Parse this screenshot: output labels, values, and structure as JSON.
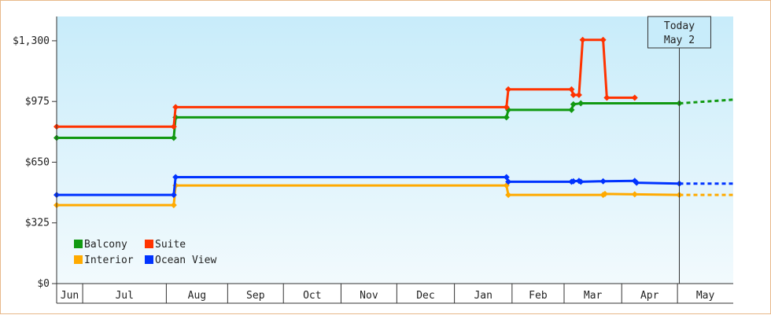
{
  "chart_data": {
    "type": "line",
    "title": "",
    "xlabel": "",
    "ylabel": "",
    "ylim": [
      0,
      1430
    ],
    "yticks": [
      {
        "value": 0,
        "label": "$0"
      },
      {
        "value": 325,
        "label": "$325"
      },
      {
        "value": 650,
        "label": "$650"
      },
      {
        "value": 975,
        "label": "$975"
      },
      {
        "value": 1300,
        "label": "$1,300"
      }
    ],
    "x_axis_type": "date",
    "xlim": [
      "2024-06-01",
      "2025-05-31"
    ],
    "months": [
      {
        "label": "Jun",
        "start": "2024-06-01"
      },
      {
        "label": "Jul",
        "start": "2024-06-15"
      },
      {
        "label": "Aug",
        "start": "2024-07-30"
      },
      {
        "label": "Sep",
        "start": "2024-09-01"
      },
      {
        "label": "Oct",
        "start": "2024-10-01"
      },
      {
        "label": "Nov",
        "start": "2024-11-01"
      },
      {
        "label": "Dec",
        "start": "2024-12-01"
      },
      {
        "label": "Jan",
        "start": "2025-01-01"
      },
      {
        "label": "Feb",
        "start": "2025-02-01"
      },
      {
        "label": "Mar",
        "start": "2025-03-01"
      },
      {
        "label": "Apr",
        "start": "2025-04-01"
      },
      {
        "label": "May",
        "start": "2025-05-01"
      }
    ],
    "today": {
      "label_line1": "Today",
      "label_line2": "May 2",
      "date": "2025-05-02"
    },
    "grid": false,
    "legend_position": "bottom-left",
    "series": [
      {
        "name": "Balcony",
        "color": "#119911",
        "points": [
          {
            "x": "2024-06-01",
            "y": 780
          },
          {
            "x": "2024-08-03",
            "y": 780
          },
          {
            "x": "2024-08-04",
            "y": 890
          },
          {
            "x": "2025-01-29",
            "y": 890
          },
          {
            "x": "2025-01-30",
            "y": 930
          },
          {
            "x": "2025-03-05",
            "y": 930
          },
          {
            "x": "2025-03-06",
            "y": 960
          },
          {
            "x": "2025-03-10",
            "y": 965
          },
          {
            "x": "2025-05-02",
            "y": 965
          }
        ],
        "projection": [
          {
            "x": "2025-05-02",
            "y": 965
          },
          {
            "x": "2025-05-31",
            "y": 985
          }
        ]
      },
      {
        "name": "Suite",
        "color": "#ff3300",
        "points": [
          {
            "x": "2024-06-01",
            "y": 840
          },
          {
            "x": "2024-08-03",
            "y": 840
          },
          {
            "x": "2024-08-04",
            "y": 945
          },
          {
            "x": "2025-01-29",
            "y": 945
          },
          {
            "x": "2025-01-30",
            "y": 1040
          },
          {
            "x": "2025-03-05",
            "y": 1040
          },
          {
            "x": "2025-03-06",
            "y": 1010
          },
          {
            "x": "2025-03-09",
            "y": 1010
          },
          {
            "x": "2025-03-11",
            "y": 1305
          },
          {
            "x": "2025-03-22",
            "y": 1305
          },
          {
            "x": "2025-03-24",
            "y": 995
          },
          {
            "x": "2025-04-08",
            "y": 995
          }
        ],
        "projection": []
      },
      {
        "name": "Interior",
        "color": "#ffaa00",
        "points": [
          {
            "x": "2024-06-01",
            "y": 420
          },
          {
            "x": "2024-08-03",
            "y": 420
          },
          {
            "x": "2024-08-04",
            "y": 525
          },
          {
            "x": "2025-01-29",
            "y": 525
          },
          {
            "x": "2025-01-30",
            "y": 475
          },
          {
            "x": "2025-03-22",
            "y": 475
          },
          {
            "x": "2025-03-23",
            "y": 480
          },
          {
            "x": "2025-04-08",
            "y": 478
          },
          {
            "x": "2025-05-02",
            "y": 475
          }
        ],
        "projection": [
          {
            "x": "2025-05-02",
            "y": 475
          },
          {
            "x": "2025-05-31",
            "y": 475
          }
        ]
      },
      {
        "name": "Ocean View",
        "color": "#0033ff",
        "points": [
          {
            "x": "2024-06-01",
            "y": 475
          },
          {
            "x": "2024-08-03",
            "y": 475
          },
          {
            "x": "2024-08-04",
            "y": 570
          },
          {
            "x": "2025-01-29",
            "y": 570
          },
          {
            "x": "2025-01-30",
            "y": 545
          },
          {
            "x": "2025-03-05",
            "y": 545
          },
          {
            "x": "2025-03-06",
            "y": 548
          },
          {
            "x": "2025-03-09",
            "y": 550
          },
          {
            "x": "2025-03-10",
            "y": 545
          },
          {
            "x": "2025-03-22",
            "y": 548
          },
          {
            "x": "2025-04-08",
            "y": 550
          },
          {
            "x": "2025-04-09",
            "y": 540
          },
          {
            "x": "2025-05-02",
            "y": 535
          }
        ],
        "projection": [
          {
            "x": "2025-05-02",
            "y": 535
          },
          {
            "x": "2025-05-31",
            "y": 535
          }
        ]
      }
    ]
  }
}
